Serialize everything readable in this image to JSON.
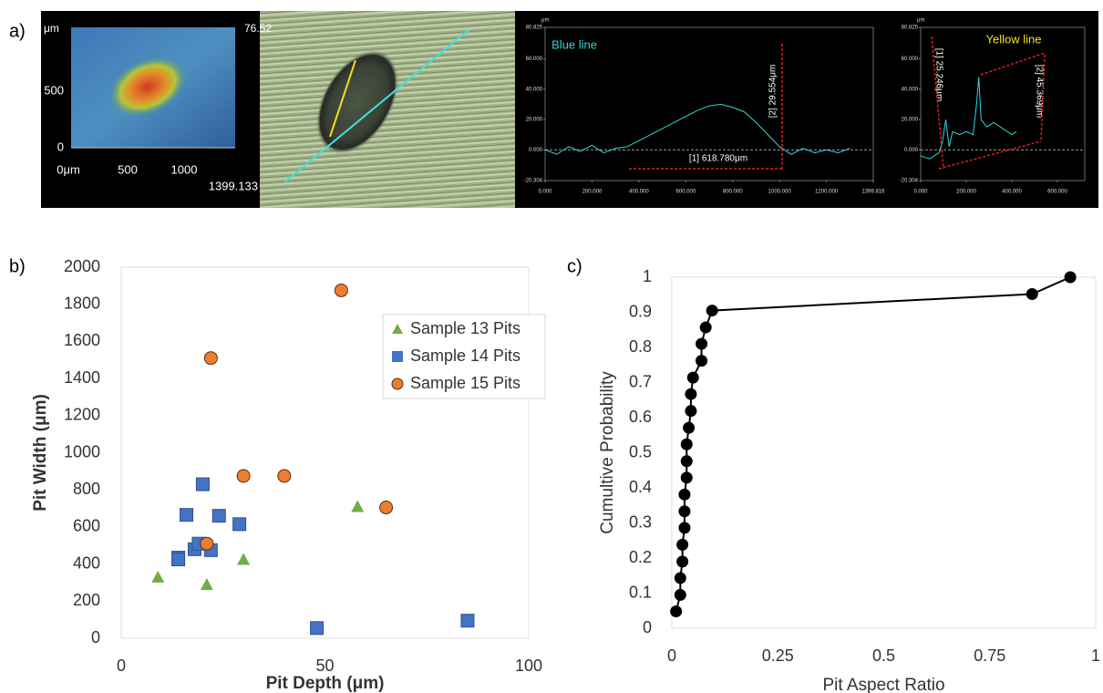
{
  "panel_labels": [
    "a)",
    "b)",
    "c)"
  ],
  "height_map": {
    "unit": "μm",
    "top_value": "76.52",
    "y_labels": [
      "500",
      "0"
    ],
    "x_labels": [
      "0μm",
      "500",
      "1000"
    ],
    "corner_label": "1399.133"
  },
  "chart_data": [
    {
      "type": "line",
      "background": "#000000",
      "y_label": "μm",
      "color": "#33d6d6",
      "x": [
        0,
        50,
        100,
        150,
        200,
        250,
        300,
        350,
        400,
        450,
        500,
        550,
        600,
        650,
        700,
        750,
        800,
        850,
        900,
        950,
        1000,
        1050,
        1100,
        1150,
        1200,
        1250,
        1300
      ],
      "values": [
        0,
        -3,
        2,
        -1,
        3,
        -2,
        1,
        2,
        6,
        10,
        14,
        18,
        22,
        26,
        29,
        30,
        28,
        25,
        18,
        10,
        2,
        -3,
        1,
        -2,
        0,
        -2,
        1
      ],
      "xlim": [
        0,
        1399.816
      ],
      "xticks": [
        {
          "value": 0,
          "label": "0.000"
        },
        {
          "value": 200,
          "label": "200.000"
        },
        {
          "value": 400,
          "label": "400.000"
        },
        {
          "value": 600,
          "label": "600.000"
        },
        {
          "value": 800,
          "label": "800.000"
        },
        {
          "value": 1000,
          "label": "1000.000"
        },
        {
          "value": 1200,
          "label": "1200.000"
        },
        {
          "value": 1399.816,
          "label": "1399.816"
        }
      ],
      "ylim": [
        -20.304,
        80.825
      ],
      "yticks": [
        {
          "value": 80.825,
          "label": "80.825"
        },
        {
          "value": 60,
          "label": "60.000"
        },
        {
          "value": 40,
          "label": "40.000"
        },
        {
          "value": 20,
          "label": "20.000"
        },
        {
          "value": 0,
          "label": "0.000"
        },
        {
          "value": -20.304,
          "label": "-20.304"
        }
      ],
      "annotations": [
        {
          "text": "Blue line",
          "color": "#33d6d6"
        },
        {
          "text": "[2] 29.554μm",
          "color": "#ffffff"
        },
        {
          "text": "[1] 618.780μm",
          "color": "#ffffff"
        }
      ]
    },
    {
      "type": "line",
      "background": "#000000",
      "y_label": "μm",
      "color": "#33d6d6",
      "x": [
        0,
        40,
        80,
        95,
        110,
        125,
        140,
        170,
        200,
        230,
        245,
        255,
        265,
        290,
        320,
        360,
        400,
        420
      ],
      "values": [
        -4,
        -6,
        -2,
        5,
        20,
        2,
        12,
        10,
        12,
        10,
        30,
        48,
        20,
        15,
        18,
        14,
        10,
        12
      ],
      "xlim": [
        0,
        720
      ],
      "xticks": [
        {
          "value": 0,
          "label": "0.000"
        },
        {
          "value": 200,
          "label": "200.000"
        },
        {
          "value": 400,
          "label": "400.000"
        },
        {
          "value": 600,
          "label": "600.000"
        }
      ],
      "ylim": [
        -20.304,
        80.825
      ],
      "yticks": [
        {
          "value": 80.825,
          "label": "80.825"
        },
        {
          "value": 60,
          "label": "60.000"
        },
        {
          "value": 40,
          "label": "40.000"
        },
        {
          "value": 20,
          "label": "20.000"
        },
        {
          "value": 0,
          "label": "0.000"
        },
        {
          "value": -20.304,
          "label": "-20.304"
        }
      ],
      "annotations": [
        {
          "text": "Yellow line",
          "color": "#f2e21c"
        },
        {
          "text": "[1] 25.246μm",
          "color": "#ffffff"
        },
        {
          "text": "[2] 45.369μm",
          "color": "#ffffff"
        }
      ]
    },
    {
      "type": "scatter",
      "x_label": "Pit Depth (μm)",
      "y_label": "Pit Width (μm)",
      "legend": "upper right",
      "xlim": [
        0,
        100
      ],
      "xticks": [
        0,
        50,
        100
      ],
      "ylim": [
        0,
        2000
      ],
      "yticks": [
        0,
        200,
        400,
        600,
        800,
        1000,
        1200,
        1400,
        1600,
        1800,
        2000
      ],
      "series": [
        {
          "name": "Sample 13 Pits",
          "color": "#70ad47",
          "marker": "triangle",
          "x": [
            9,
            21,
            30,
            58
          ],
          "values": [
            330,
            290,
            425,
            710
          ]
        },
        {
          "name": "Sample 14 Pits",
          "color": "#4472c4",
          "marker": "square",
          "x": [
            14,
            14,
            16,
            18,
            19,
            20,
            22,
            24,
            29,
            48,
            85
          ],
          "values": [
            435,
            425,
            665,
            480,
            510,
            830,
            475,
            660,
            615,
            55,
            95
          ]
        },
        {
          "name": "Sample 15 Pits",
          "color": "#ed7d31",
          "marker": "circle",
          "x": [
            54,
            22,
            30,
            40,
            65,
            21
          ],
          "values": [
            1875,
            1510,
            875,
            875,
            705,
            510
          ]
        }
      ]
    },
    {
      "type": "line",
      "marker": "circle",
      "color": "#000000",
      "x_label": "Pit Aspect Ratio",
      "y_label": "Cumultive Probability",
      "x": [
        0.01,
        0.02,
        0.02,
        0.025,
        0.025,
        0.03,
        0.03,
        0.03,
        0.035,
        0.035,
        0.035,
        0.04,
        0.045,
        0.045,
        0.05,
        0.07,
        0.07,
        0.08,
        0.095,
        0.85,
        0.94
      ],
      "values": [
        0.048,
        0.095,
        0.143,
        0.19,
        0.238,
        0.286,
        0.333,
        0.381,
        0.429,
        0.476,
        0.524,
        0.571,
        0.619,
        0.667,
        0.714,
        0.762,
        0.81,
        0.857,
        0.905,
        0.952,
        1
      ],
      "xlim": [
        0,
        1
      ],
      "xticks": [
        0,
        0.25,
        0.5,
        0.75,
        1
      ],
      "ylim": [
        0,
        1
      ],
      "yticks": [
        0,
        0.1,
        0.2,
        0.3,
        0.4,
        0.5,
        0.6,
        0.7,
        0.8,
        0.9,
        1
      ]
    }
  ]
}
